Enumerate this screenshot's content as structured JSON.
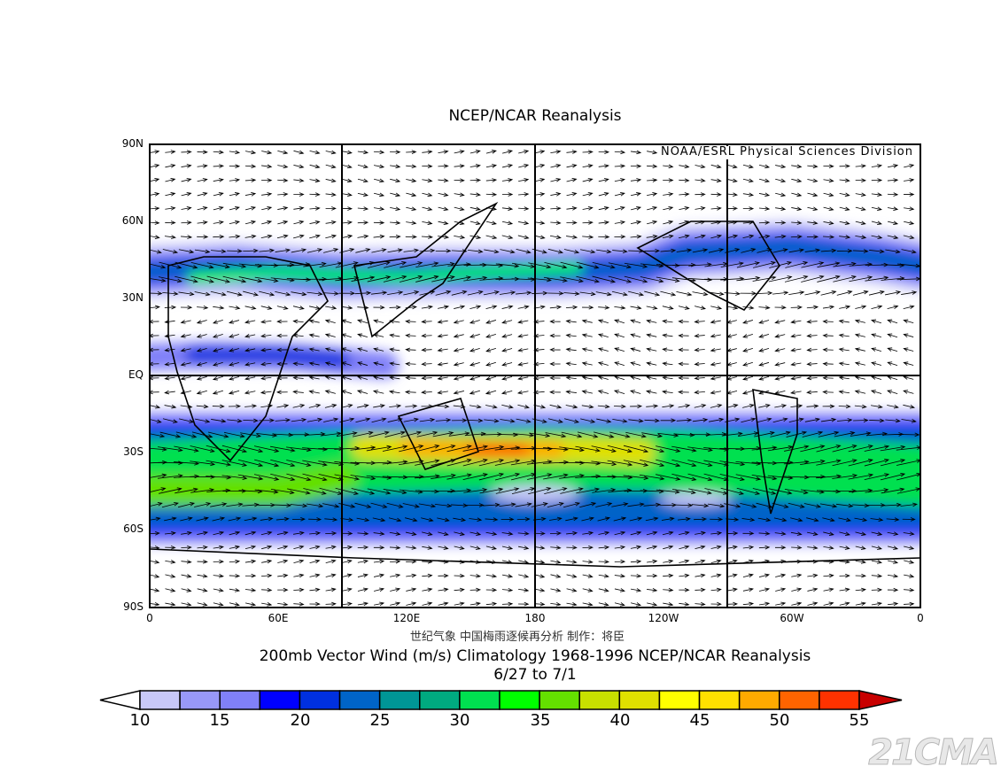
{
  "title": "NCEP/NCAR Reanalysis",
  "org_label": "NOAA/ESRL Physical Sciences Division",
  "lat_ticks": [
    "90N",
    "60N",
    "30N",
    "EQ",
    "30S",
    "60S",
    "90S"
  ],
  "lon_ticks": [
    "0",
    "60E",
    "120E",
    "180",
    "120W",
    "60W",
    "0"
  ],
  "credit": "世纪气象  中国梅雨逐候再分析  制作：将臣",
  "caption_line1": "200mb Vector Wind (m/s) Climatology 1968-1996 NCEP/NCAR Reanalysis",
  "caption_line2": "6/27  to 7/1",
  "colorbar": {
    "labels": [
      "10",
      "15",
      "20",
      "25",
      "30",
      "35",
      "40",
      "45",
      "50",
      "55"
    ],
    "colors": [
      "#c8c8f8",
      "#9898f8",
      "#8080f8",
      "#0000ff",
      "#0030e0",
      "#0064c8",
      "#009696",
      "#00aa80",
      "#00e050",
      "#00ff00",
      "#64e000",
      "#c8e000",
      "#e0e000",
      "#ffff00",
      "#ffe000",
      "#ffaa00",
      "#ff6400",
      "#ff3200"
    ],
    "over_color": "#c80000",
    "under_color": "#ffffff"
  },
  "watermark": "21CMA"
}
